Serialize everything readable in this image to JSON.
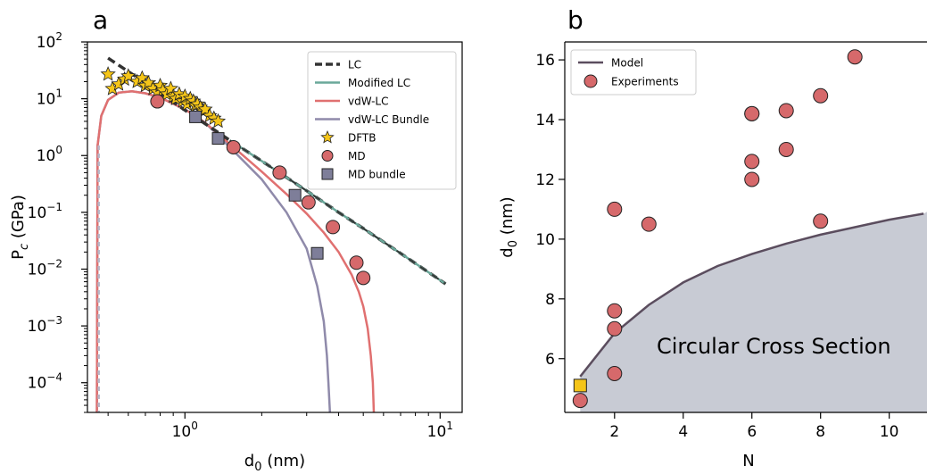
{
  "chart_data": [
    {
      "panel_label": "a",
      "type": "line",
      "xlabel": "d_0 (nm)",
      "ylabel": "P_c (GPa)",
      "xscale": "log",
      "yscale": "log",
      "xlim": [
        0.415,
        12.2
      ],
      "ylim": [
        3e-05,
        100
      ],
      "xticks": [
        {
          "value": 1,
          "base": "10",
          "exp": "0"
        },
        {
          "value": 10,
          "base": "10",
          "exp": "1"
        }
      ],
      "yticks": [
        {
          "value": 100,
          "base": "10",
          "exp": "2"
        },
        {
          "value": 10,
          "base": "10",
          "exp": "1"
        },
        {
          "value": 1,
          "base": "10",
          "exp": "0"
        },
        {
          "value": 0.1,
          "base": "10",
          "exp": "−1"
        },
        {
          "value": 0.01,
          "base": "10",
          "exp": "−2"
        },
        {
          "value": 0.001,
          "base": "10",
          "exp": "−3"
        },
        {
          "value": 0.0001,
          "base": "10",
          "exp": "−4"
        }
      ],
      "legend_position": "top-right",
      "series": [
        {
          "name": "LC",
          "kind": "line",
          "color": "#333333",
          "dash": true,
          "x": [
            0.5,
            0.7,
            1.0,
            1.5,
            2,
            3,
            4,
            5,
            7,
            10.5
          ],
          "y": [
            52,
            19,
            6.3,
            1.85,
            0.8,
            0.24,
            0.1,
            0.052,
            0.019,
            0.0055
          ]
        },
        {
          "name": "Modified LC",
          "kind": "line",
          "color": "#6aa89a",
          "x": [
            1.5,
            2,
            3,
            4,
            5,
            7,
            10.5
          ],
          "y": [
            1.85,
            0.8,
            0.24,
            0.1,
            0.052,
            0.019,
            0.0055
          ]
        },
        {
          "name": "vdW-LC",
          "kind": "line",
          "color": "#e07070",
          "x": [
            0.452,
            0.455,
            0.47,
            0.5,
            0.55,
            0.62,
            0.7,
            0.8,
            1.0,
            1.2,
            1.5,
            2.0,
            2.5,
            3.0,
            3.5,
            4.0,
            4.5,
            4.8,
            5.0,
            5.2,
            5.35,
            5.45,
            5.5
          ],
          "y": [
            3e-05,
            1.5,
            5,
            9.5,
            12.8,
            13.5,
            12.5,
            10.5,
            6.5,
            3.8,
            1.6,
            0.52,
            0.21,
            0.095,
            0.044,
            0.02,
            0.008,
            0.004,
            0.0022,
            0.0009,
            0.0003,
            0.0001,
            3e-05
          ]
        },
        {
          "name": "vdW-LC Bundle",
          "kind": "line",
          "color": "#8f8aaa",
          "x": [
            0.452,
            0.455,
            0.47,
            0.5,
            0.55,
            0.62,
            0.7,
            0.8,
            1.0,
            1.2,
            1.5,
            2.0,
            2.5,
            3.0,
            3.3,
            3.5,
            3.6,
            3.65,
            3.7
          ],
          "y": [
            3e-05,
            1.5,
            5,
            9.5,
            12.8,
            13.5,
            12.5,
            10.5,
            6.5,
            3.8,
            1.4,
            0.38,
            0.1,
            0.023,
            0.005,
            0.0012,
            0.0003,
            0.0001,
            3e-05
          ]
        },
        {
          "name": "DFTB",
          "kind": "scatter",
          "marker": "star",
          "color": "#f5c518",
          "x": [
            0.5,
            0.52,
            0.55,
            0.58,
            0.6,
            0.65,
            0.68,
            0.7,
            0.72,
            0.75,
            0.78,
            0.8,
            0.82,
            0.85,
            0.88,
            0.9,
            0.92,
            0.95,
            0.98,
            1.0,
            1.02,
            1.05,
            1.08,
            1.1,
            1.12,
            1.15,
            1.18,
            1.2,
            1.25,
            1.3,
            1.35
          ],
          "y": [
            27,
            15,
            18,
            22,
            25,
            20,
            23,
            17,
            19,
            15,
            13,
            17,
            14,
            12,
            15,
            11,
            10,
            12,
            9,
            11,
            8,
            10,
            9,
            7.5,
            8,
            7,
            6,
            6.5,
            5,
            4.5,
            4
          ]
        },
        {
          "name": "MD",
          "kind": "scatter",
          "marker": "circle",
          "color": "#d6696b",
          "x": [
            0.78,
            1.55,
            2.35,
            3.05,
            3.8,
            4.7,
            5.0
          ],
          "y": [
            9,
            1.4,
            0.5,
            0.15,
            0.055,
            0.013,
            0.007
          ]
        },
        {
          "name": "MD bundle",
          "kind": "scatter",
          "marker": "square",
          "color": "#7e7e99",
          "x": [
            1.1,
            1.35,
            2.7,
            3.3
          ],
          "y": [
            4.8,
            2.0,
            0.2,
            0.019
          ]
        }
      ]
    },
    {
      "panel_label": "b",
      "type": "scatter",
      "xlabel": "N",
      "ylabel": "d_0 (nm)",
      "xlim": [
        0.55,
        11.1
      ],
      "ylim": [
        4.2,
        16.6
      ],
      "xticks": [
        2,
        4,
        6,
        8,
        10
      ],
      "yticks": [
        6,
        8,
        10,
        12,
        14,
        16
      ],
      "legend_position": "top-left",
      "annotation": "Circular Cross Section",
      "region_color": "#c8cbd4",
      "series": [
        {
          "name": "Model",
          "kind": "line",
          "color": "#5b4d5e",
          "x": [
            1,
            2,
            3,
            4,
            5,
            6,
            7,
            8,
            9,
            10,
            11
          ],
          "y": [
            5.4,
            6.85,
            7.8,
            8.55,
            9.1,
            9.5,
            9.85,
            10.15,
            10.4,
            10.65,
            10.85
          ]
        },
        {
          "name": "Experiments",
          "kind": "scatter",
          "marker": "circle",
          "color": "#d6696b",
          "x": [
            1,
            2,
            2,
            2,
            2,
            3,
            6,
            6,
            6,
            6,
            7,
            7,
            8,
            8,
            9
          ],
          "y": [
            4.6,
            5.5,
            7.0,
            7.6,
            11.0,
            10.5,
            12.0,
            12.6,
            14.2,
            14.2,
            13.0,
            14.3,
            10.6,
            14.8,
            16.1
          ]
        },
        {
          "kind": "scatter",
          "marker": "square",
          "color": "#f5c518",
          "x": [
            1
          ],
          "y": [
            5.1
          ]
        }
      ]
    }
  ]
}
